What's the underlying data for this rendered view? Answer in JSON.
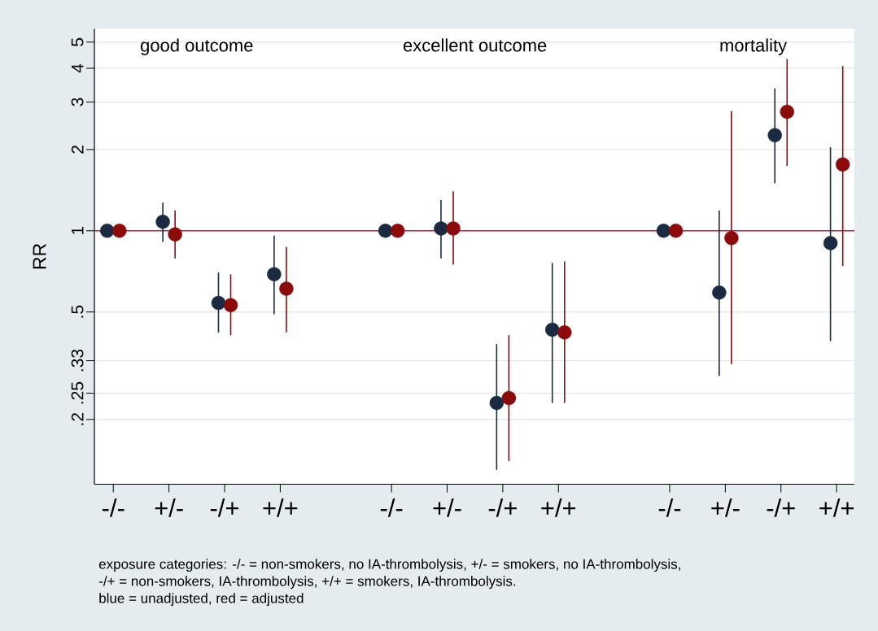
{
  "chart_data": {
    "type": "scatter",
    "ylabel": "RR",
    "log": true,
    "grid": "y",
    "marker": "circle",
    "categories": [
      "-/-",
      "+/-",
      "-/+",
      "+/+",
      null,
      "-/-",
      "+/-",
      "-/+",
      "+/+",
      null,
      "-/-",
      "+/-",
      "-/+",
      "+/+"
    ],
    "ylim": [
      0.115,
      5.6
    ],
    "yticks": [
      {
        "value": 0.2,
        "label": ".2"
      },
      {
        "value": 0.25,
        "label": ".25"
      },
      {
        "value": 0.33,
        "label": ".33"
      },
      {
        "value": 0.5,
        "label": ".5"
      },
      1,
      2,
      3,
      4,
      5
    ],
    "series": [
      {
        "color": "#1a2a40",
        "values": [
          1.0,
          1.08,
          0.54,
          0.69,
          null,
          1.0,
          1.02,
          0.23,
          0.43,
          null,
          1.0,
          0.59,
          2.26,
          0.9
        ],
        "errors": [
          null,
          [
            0.91,
            1.27
          ],
          [
            0.42,
            0.7
          ],
          [
            0.49,
            0.96
          ],
          null,
          null,
          [
            0.79,
            1.3
          ],
          [
            0.13,
            0.38
          ],
          [
            0.23,
            0.76
          ],
          null,
          null,
          [
            0.29,
            1.19
          ],
          [
            1.5,
            3.37
          ],
          [
            0.39,
            2.04
          ]
        ]
      },
      {
        "color": "#8b0a0a",
        "values": [
          1.0,
          0.97,
          0.53,
          0.61,
          null,
          1.0,
          1.02,
          0.24,
          0.42,
          null,
          1.0,
          0.94,
          2.76,
          1.76
        ],
        "errors": [
          null,
          [
            0.79,
            1.19
          ],
          [
            0.41,
            0.69
          ],
          [
            0.42,
            0.87
          ],
          null,
          null,
          [
            0.75,
            1.4
          ],
          [
            0.14,
            0.41
          ],
          [
            0.23,
            0.77
          ],
          null,
          null,
          [
            0.32,
            2.78
          ],
          [
            1.74,
            4.33
          ],
          [
            0.74,
            4.08
          ]
        ]
      }
    ],
    "ref_lines": [
      {
        "axis": "y",
        "value": 1,
        "color": "#c41e4a"
      }
    ],
    "annotations": [
      "good outcome",
      "excellent outcome",
      "mortality",
      "exposure categories: -/- = non-smokers, no IA-thrombolysis, +/- = smokers, no IA-thrombolysis,",
      "-/+ = non-smokers, IA-thrombolysis, +/+ = smokers, IA-thrombolysis.",
      "blue = unadjusted, red = adjusted"
    ]
  }
}
